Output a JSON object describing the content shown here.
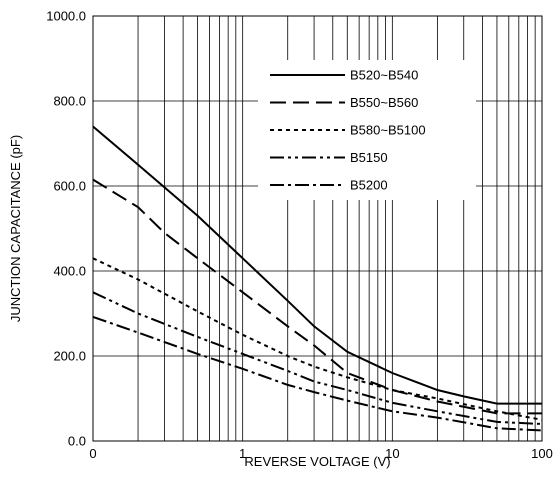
{
  "chart_data": {
    "type": "line",
    "title": "",
    "xlabel": "REVERSE VOLTAGE (V)",
    "ylabel": "JUNCTION CAPACITANCE  (pF)",
    "x_scale": "log",
    "xlim": [
      0.1,
      100
    ],
    "ylim": [
      0,
      1000
    ],
    "grid": true,
    "legend_position": "top-right",
    "x_ticks": [
      0.1,
      1,
      10,
      100
    ],
    "x_tick_labels": [
      "0",
      "1",
      "10",
      "100"
    ],
    "y_ticks": [
      0,
      200,
      400,
      600,
      800,
      1000
    ],
    "y_tick_labels": [
      "0.0",
      "200.0",
      "400.0",
      "600.0",
      "800.0",
      "1000.0"
    ],
    "series": [
      {
        "name": "B520~B540",
        "dash": "solid",
        "x": [
          0.1,
          0.2,
          0.5,
          1,
          2,
          3,
          5,
          10,
          20,
          30,
          50,
          100
        ],
        "y": [
          740,
          650,
          530,
          430,
          330,
          270,
          210,
          160,
          120,
          105,
          88,
          88
        ]
      },
      {
        "name": "B550~B560",
        "dash": "long-dash",
        "x": [
          0.1,
          0.2,
          0.3,
          0.5,
          1,
          2,
          3,
          5,
          10,
          20,
          50,
          100
        ],
        "y": [
          615,
          550,
          490,
          430,
          350,
          270,
          225,
          160,
          120,
          93,
          65,
          65
        ]
      },
      {
        "name": "B580~B5100",
        "dash": "short-dash",
        "x": [
          0.1,
          0.2,
          0.5,
          1,
          2,
          3,
          5,
          10,
          20,
          50,
          100
        ],
        "y": [
          430,
          380,
          305,
          250,
          200,
          175,
          150,
          120,
          100,
          70,
          50
        ]
      },
      {
        "name": "B5150",
        "dash": "dash-dot-dot",
        "x": [
          0.1,
          0.2,
          0.5,
          1,
          2,
          3,
          5,
          10,
          20,
          50,
          100
        ],
        "y": [
          350,
          300,
          245,
          205,
          165,
          140,
          120,
          90,
          70,
          45,
          40
        ]
      },
      {
        "name": "B5200",
        "dash": "dash-dot",
        "x": [
          0.1,
          0.2,
          0.5,
          1,
          2,
          3,
          5,
          10,
          20,
          50,
          100
        ],
        "y": [
          292,
          255,
          205,
          170,
          132,
          115,
          95,
          70,
          55,
          30,
          25
        ]
      }
    ]
  }
}
